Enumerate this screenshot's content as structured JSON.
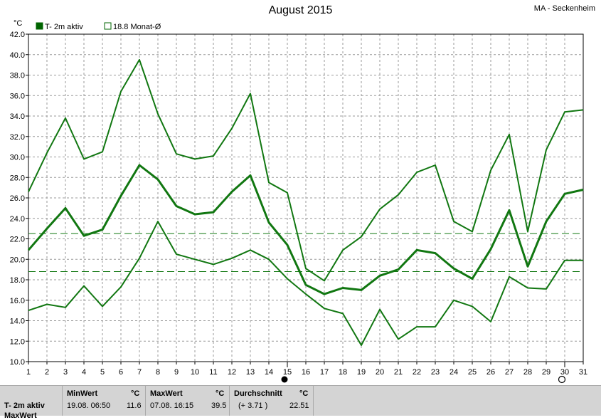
{
  "header": {
    "title": "August 2015",
    "station": "MA - Seckenheim"
  },
  "legend": {
    "items": [
      {
        "label": "T- 2m aktiv",
        "color": "#006400",
        "filled": true
      },
      {
        "label": "18.8 Monat-Ø",
        "color": "#006400",
        "filled": false
      }
    ]
  },
  "chart_data": {
    "type": "line",
    "title": "August 2015",
    "ylabel": "°C",
    "ylim": [
      10,
      42
    ],
    "yticks": [
      "10.0",
      "12.0",
      "14.0",
      "16.0",
      "18.0",
      "20.0",
      "22.0",
      "24.0",
      "26.0",
      "28.0",
      "30.0",
      "32.0",
      "34.0",
      "36.0",
      "38.0",
      "40.0",
      "42.0"
    ],
    "x": [
      1,
      2,
      3,
      4,
      5,
      6,
      7,
      8,
      9,
      10,
      11,
      12,
      13,
      14,
      15,
      16,
      17,
      18,
      19,
      20,
      21,
      22,
      23,
      24,
      25,
      26,
      27,
      28,
      29,
      30,
      31
    ],
    "grid": true,
    "series": [
      {
        "key": "max",
        "color": "#117711",
        "width": 2,
        "values": [
          26.6,
          30.4,
          33.8,
          29.8,
          30.5,
          36.4,
          39.5,
          34.2,
          30.3,
          29.8,
          30.1,
          32.8,
          36.2,
          27.5,
          26.5,
          19.1,
          17.9,
          20.9,
          22.2,
          24.9,
          26.3,
          28.5,
          29.2,
          23.7,
          22.7,
          28.7,
          32.2,
          22.7,
          30.7,
          34.4,
          34.6
        ]
      },
      {
        "key": "avg",
        "color": "#117711",
        "width": 3,
        "values": [
          20.9,
          23.0,
          25.0,
          22.3,
          22.9,
          26.2,
          29.2,
          27.8,
          25.2,
          24.4,
          24.6,
          26.6,
          28.2,
          23.6,
          21.4,
          17.5,
          16.6,
          17.2,
          17.0,
          18.4,
          19.0,
          20.9,
          20.6,
          19.1,
          18.1,
          21.0,
          24.8,
          19.3,
          23.7,
          26.4,
          26.8
        ]
      },
      {
        "key": "min",
        "color": "#117711",
        "width": 2,
        "values": [
          15.0,
          15.6,
          15.3,
          17.4,
          15.4,
          17.3,
          20.1,
          23.7,
          20.5,
          20.0,
          19.5,
          20.1,
          20.9,
          20.0,
          18.1,
          16.6,
          15.2,
          14.7,
          11.6,
          15.1,
          12.2,
          13.4,
          13.4,
          16.0,
          15.4,
          13.9,
          18.3,
          17.2,
          17.1,
          19.9,
          19.9
        ]
      }
    ],
    "reference_lines": [
      {
        "value": 22.51,
        "color": "#117711"
      },
      {
        "value": 18.8,
        "color": "#117711"
      }
    ],
    "markers": [
      {
        "x": 15,
        "symbol": "full-moon"
      },
      {
        "x": 30,
        "symbol": "new-moon"
      }
    ]
  },
  "footer": {
    "row_label": "T- 2m aktiv",
    "row_label2": "MaxWert",
    "min": {
      "header": "MinWert",
      "unit": "°C",
      "date": "19.08.  06:50",
      "value": "11.6"
    },
    "max": {
      "header": "MaxWert",
      "unit": "°C",
      "date": "07.08.  16:15",
      "value": "39.5"
    },
    "avg": {
      "header": "Durchschnitt",
      "unit": "°C",
      "delta": "(+ 3.71 )",
      "value": "22.51"
    }
  }
}
